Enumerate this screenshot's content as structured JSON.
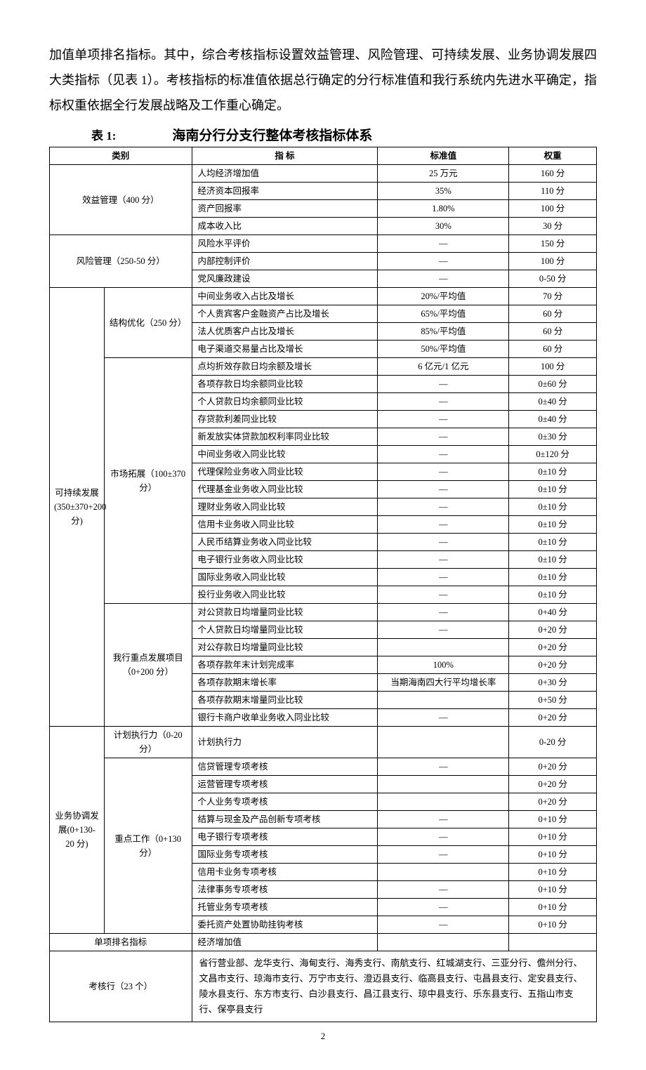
{
  "intro": "加值单项排名指标。其中，综合考核指标设置效益管理、风险管理、可持续发展、业务协调发展四大类指标（见表 1）。考核指标的标准值依据总行确定的分行标准值和我行系统内先进水平确定，指标权重依据全行发展战略及工作重心确定。",
  "table_label": "表 1:",
  "table_title": "海南分行分支行整体考核指标体系",
  "headers": {
    "cat": "类别",
    "ind": "指  标",
    "std": "标准值",
    "w": "权重"
  },
  "groups": [
    {
      "cat1": "效益管理（400 分）",
      "cat1span": 4,
      "cat1cols": 2,
      "rows": [
        {
          "ind": "人均经济增加值",
          "std": "25 万元",
          "w": "160 分"
        },
        {
          "ind": "经济资本回报率",
          "std": "35%",
          "w": "110 分"
        },
        {
          "ind": "资产回报率",
          "std": "1.80%",
          "w": "100 分"
        },
        {
          "ind": "成本收入比",
          "std": "30%",
          "w": "30 分"
        }
      ]
    },
    {
      "cat1": "风险管理（250-50 分）",
      "cat1span": 3,
      "cat1cols": 2,
      "rows": [
        {
          "ind": "风险水平评价",
          "std": "—",
          "w": "150 分"
        },
        {
          "ind": "内部控制评价",
          "std": "—",
          "w": "100 分"
        },
        {
          "ind": "党风廉政建设",
          "std": "—",
          "w": "0-50 分"
        }
      ]
    },
    {
      "cat1": "可持续发展(350±370+200分)",
      "cat1span": 25,
      "cat1cols": 1,
      "subgroups": [
        {
          "cat2": "结构优化（250 分）",
          "span": 4,
          "rows": [
            {
              "ind": "中间业务收入占比及增长",
              "std": "20%/平均值",
              "w": "70 分"
            },
            {
              "ind": "个人贵宾客户金融资产占比及增长",
              "std": "65%/平均值",
              "w": "60 分"
            },
            {
              "ind": "法人优质客户占比及增长",
              "std": "85%/平均值",
              "w": "60 分"
            },
            {
              "ind": "电子渠道交易量占比及增长",
              "std": "50%/平均值",
              "w": "60 分"
            }
          ]
        },
        {
          "cat2": "市场拓展（100±370 分）",
          "span": 14,
          "rows": [
            {
              "ind": "点均折效存款日均余额及增长",
              "std": "6 亿元/1 亿元",
              "w": "100 分"
            },
            {
              "ind": "各项存款日均余额同业比较",
              "std": "—",
              "w": "0±60 分"
            },
            {
              "ind": "个人贷款日均余额同业比较",
              "std": "—",
              "w": "0±40 分"
            },
            {
              "ind": "存贷款利差同业比较",
              "std": "—",
              "w": "0±40 分"
            },
            {
              "ind": "新发放实体贷款加权利率同业比较",
              "std": "—",
              "w": "0±30 分"
            },
            {
              "ind": "中间业务收入同业比较",
              "std": "—",
              "w": "0±120 分"
            },
            {
              "ind": "代理保险业务收入同业比较",
              "std": "—",
              "w": "0±10 分"
            },
            {
              "ind": "代理基金业务收入同业比较",
              "std": "—",
              "w": "0±10 分"
            },
            {
              "ind": "理财业务收入同业比较",
              "std": "—",
              "w": "0±10 分"
            },
            {
              "ind": "信用卡业务收入同业比较",
              "std": "—",
              "w": "0±10 分"
            },
            {
              "ind": "人民币结算业务收入同业比较",
              "std": "—",
              "w": "0±10 分"
            },
            {
              "ind": "电子银行业务收入同业比较",
              "std": "—",
              "w": "0±10 分"
            },
            {
              "ind": "国际业务收入同业比较",
              "std": "—",
              "w": "0±10 分"
            },
            {
              "ind": "投行业务收入同业比较",
              "std": "—",
              "w": "0±10 分"
            }
          ]
        },
        {
          "cat2": "我行重点发展项目（0+200 分）",
          "span": 7,
          "rows": [
            {
              "ind": "对公贷款日均增量同业比较",
              "std": "—",
              "w": "0+40 分"
            },
            {
              "ind": "个人贷款日均增量同业比较",
              "std": "—",
              "w": "0+20 分"
            },
            {
              "ind": "对公存款日均增量同业比较",
              "std": "",
              "w": "0+20 分"
            },
            {
              "ind": "各项存款年末计划完成率",
              "std": "100%",
              "w": "0+20 分"
            },
            {
              "ind": "各项存款期末增长率",
              "std": "当期海南四大行平均增长率",
              "w": "0+30 分"
            },
            {
              "ind": "各项存款期末增量同业比较",
              "std": "",
              "w": "0+50 分"
            },
            {
              "ind": "银行卡商户收单业务收入同业比较",
              "std": "—",
              "w": "0+20 分"
            }
          ]
        }
      ]
    },
    {
      "cat1": "业务协调发展(0+130-20 分)",
      "cat1span": 11,
      "cat1cols": 1,
      "subgroups": [
        {
          "cat2": "计划执行力（0-20 分）",
          "span": 1,
          "rows": [
            {
              "ind": "计划执行力",
              "std": "",
              "w": "0-20 分"
            }
          ]
        },
        {
          "cat2": "重点工作（0+130 分）",
          "span": 10,
          "rows": [
            {
              "ind": "信贷管理专项考核",
              "std": "—",
              "w": "0+20 分"
            },
            {
              "ind": "运营管理专项考核",
              "std": "",
              "w": "0+20 分"
            },
            {
              "ind": "个人业务专项考核",
              "std": "",
              "w": "0+20 分"
            },
            {
              "ind": "结算与现金及产品创新专项考核",
              "std": "—",
              "w": "0+10 分"
            },
            {
              "ind": "电子银行专项考核",
              "std": "—",
              "w": "0+10 分"
            },
            {
              "ind": "国际业务专项考核",
              "std": "—",
              "w": "0+10 分"
            },
            {
              "ind": "信用卡业务专项考核",
              "std": "",
              "w": "0+10 分"
            },
            {
              "ind": "法律事务专项考核",
              "std": "—",
              "w": "0+10 分"
            },
            {
              "ind": "托管业务专项考核",
              "std": "—",
              "w": "0+10 分"
            },
            {
              "ind": "委托资产处置协助挂钩考核",
              "std": "—",
              "w": "0+10 分"
            }
          ]
        }
      ]
    }
  ],
  "single_rank": {
    "cat": "单项排名指标",
    "ind": "经济增加值"
  },
  "branches": {
    "label": "考核行（23 个）",
    "text": "省行营业部、龙华支行、海甸支行、海秀支行、南航支行、红城湖支行、三亚分行、儋州分行、文昌市支行、琼海市支行、万宁市支行、澄迈县支行、临高县支行、屯昌县支行、定安县支行、陵水县支行、东方市支行、白沙县支行、昌江县支行、琼中县支行、乐东县支行、五指山市支行、保亭县支行"
  },
  "page_number": "2"
}
